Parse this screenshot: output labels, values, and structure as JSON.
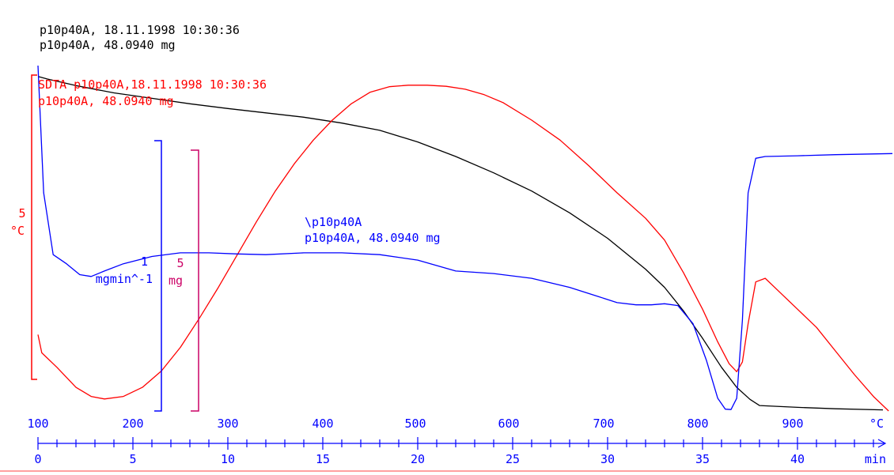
{
  "header": {
    "black_line1": "p10p40A, 18.11.1998 10:30:36",
    "black_line2": "p10p40A, 48.0940 mg",
    "red_line1": "SDTA p10p40A,18.11.1998 10:30:36",
    "red_line2": "p10p40A, 48.0940 mg"
  },
  "annotations": {
    "blue_name": "\\p10p40A",
    "blue_mass": "p10p40A, 48.0940 mg"
  },
  "scale_bars": {
    "sdta": {
      "value": "5",
      "unit": "°C"
    },
    "dtg": {
      "value": "1",
      "unit": "mgmin^-1"
    },
    "tg": {
      "value": "5",
      "unit": "mg"
    }
  },
  "axes": {
    "temperature": {
      "unit": "°C",
      "ticks": [
        "100",
        "200",
        "300",
        "400",
        "500",
        "600",
        "700",
        "800",
        "900"
      ],
      "range": [
        100,
        1020
      ]
    },
    "time": {
      "unit": "min",
      "ticks": [
        "0",
        "5",
        "10",
        "15",
        "20",
        "25",
        "30",
        "35",
        "40"
      ],
      "range": [
        0,
        45
      ]
    }
  },
  "colors": {
    "tg": "#000000",
    "sdta": "#ff0000",
    "dtg": "#0000ff",
    "scale_tg": "#cc0066",
    "baseline": "#ff8080"
  },
  "chart_data": {
    "type": "line",
    "x_label": "min",
    "x2_label": "°C",
    "x_range": [
      0,
      45
    ],
    "series": [
      {
        "name": "p10p40A, 48.0940 mg",
        "color": "#000000",
        "x": [
          0,
          0.5,
          2,
          4,
          6,
          8,
          10,
          12,
          14,
          16,
          18,
          20,
          22,
          24,
          26,
          28,
          30,
          32,
          33,
          34,
          35,
          36,
          36.8,
          37.5,
          38,
          40,
          42,
          44.5
        ],
        "y": [
          92.0,
          91.3,
          89.5,
          87.5,
          86.0,
          84.5,
          83.2,
          82.0,
          80.8,
          79.2,
          77.2,
          74.0,
          70.0,
          65.5,
          60.5,
          54.5,
          47.5,
          39.0,
          34.0,
          27.5,
          20.0,
          12.0,
          6.5,
          3.2,
          1.5,
          1.0,
          0.6,
          0.3
        ]
      },
      {
        "name": "SDTA p10p40A",
        "color": "#ff0000",
        "x": [
          0,
          0.2,
          1,
          2,
          2.8,
          3.5,
          4.5,
          5.5,
          6.5,
          7.5,
          8.5,
          9.5,
          10.5,
          11.5,
          12.5,
          13.5,
          14.5,
          15.5,
          16.5,
          17.5,
          18.5,
          19.5,
          20.5,
          21.5,
          22.5,
          23.5,
          24.5,
          26,
          27.5,
          29,
          30.5,
          32,
          33,
          34,
          35,
          35.8,
          36.4,
          36.8,
          37.1,
          37.4,
          37.8,
          38.3,
          39,
          40,
          41,
          42,
          43,
          44,
          44.8
        ],
        "y": [
          21.0,
          16.0,
          12.0,
          6.5,
          4.0,
          3.3,
          4.0,
          6.5,
          11.0,
          17.5,
          25.5,
          34.0,
          43.0,
          52.0,
          60.5,
          68.0,
          74.5,
          80.0,
          84.5,
          87.7,
          89.2,
          89.6,
          89.6,
          89.3,
          88.5,
          87.0,
          84.8,
          80.0,
          74.5,
          67.5,
          60.0,
          53.0,
          47.0,
          38.0,
          28.0,
          19.0,
          13.0,
          10.8,
          13.5,
          24.0,
          35.5,
          36.5,
          33.0,
          28.0,
          23.0,
          16.5,
          10.0,
          4.0,
          0.0
        ]
      },
      {
        "name": "\\p10p40A",
        "color": "#0000ff",
        "x": [
          0,
          0.3,
          0.8,
          1.5,
          2.2,
          2.8,
          3.5,
          4.5,
          6,
          7.5,
          9,
          10.5,
          12,
          14,
          16,
          18,
          20,
          22,
          24,
          26,
          28,
          29.5,
          30.5,
          31.5,
          32.3,
          33,
          33.7,
          34.5,
          35.2,
          35.8,
          36.2,
          36.5,
          36.8,
          37.1,
          37.4,
          37.8,
          38.3,
          40,
          42,
          45
        ],
        "y": [
          95.0,
          60.0,
          43.0,
          40.5,
          37.5,
          37.0,
          38.5,
          40.5,
          42.5,
          43.5,
          43.5,
          43.2,
          43.0,
          43.5,
          43.5,
          43.0,
          41.5,
          38.5,
          37.8,
          36.5,
          34.0,
          31.5,
          29.8,
          29.2,
          29.2,
          29.5,
          29.0,
          24.0,
          14.0,
          3.5,
          0.5,
          0.4,
          3.5,
          25.0,
          60.0,
          69.5,
          70.0,
          70.2,
          70.5,
          70.8
        ]
      }
    ]
  }
}
